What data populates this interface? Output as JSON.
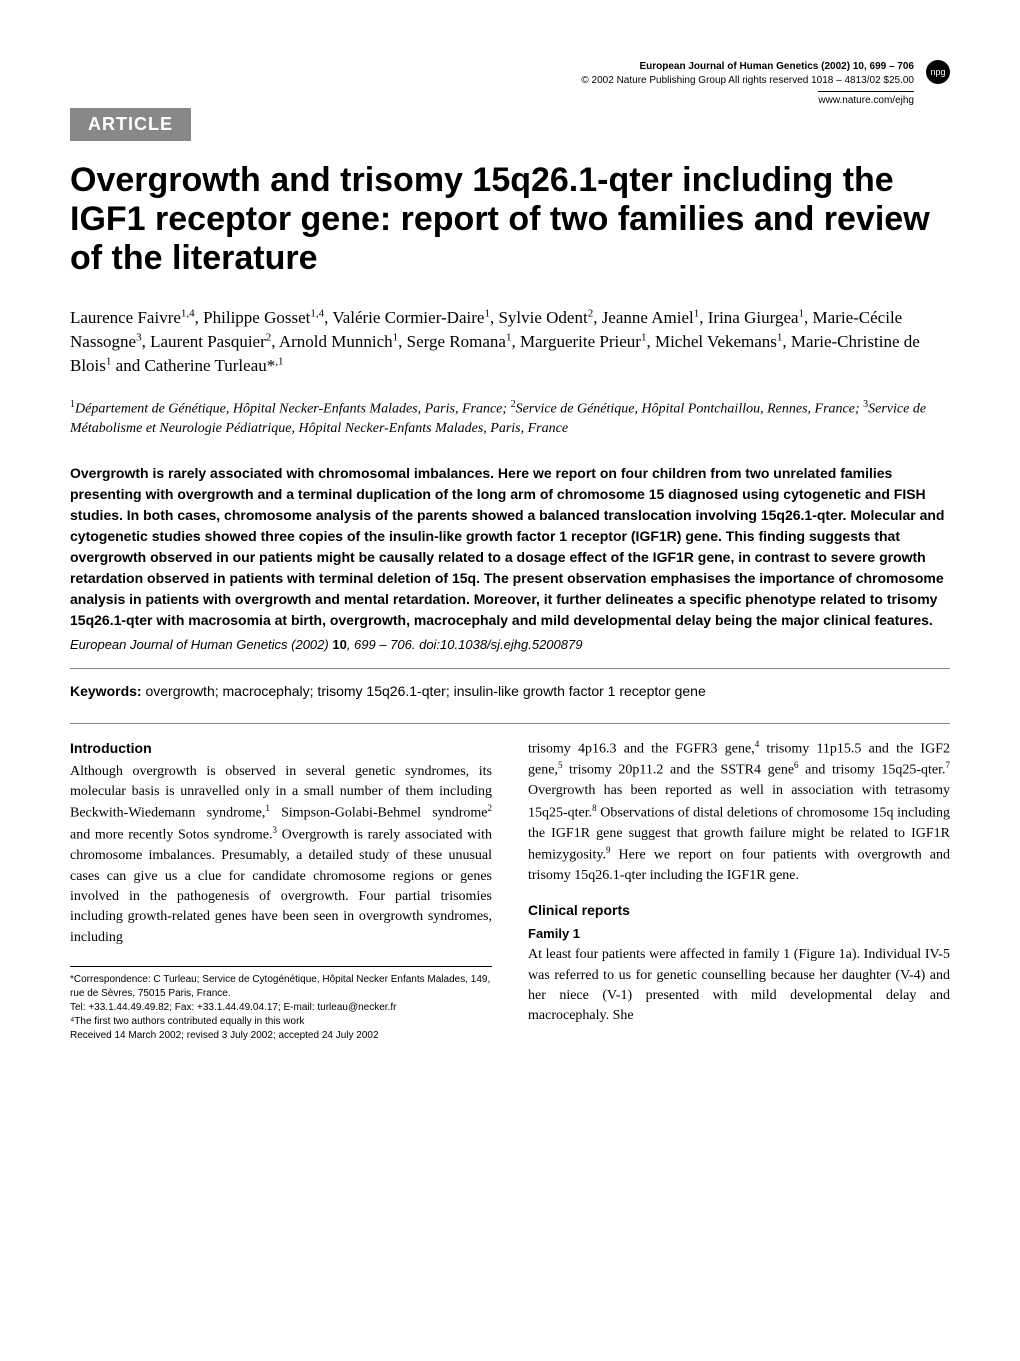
{
  "header": {
    "journal_line": "European Journal of Human Genetics (2002) 10, 699 – 706",
    "copyright_line": "© 2002 Nature Publishing Group   All rights reserved 1018 – 4813/02 $25.00",
    "url": "www.nature.com/ejhg",
    "badge": "npg"
  },
  "article_tag": "ARTICLE",
  "title": "Overgrowth and trisomy 15q26.1-qter including the IGF1 receptor gene: report of two families and review of the literature",
  "authors_html": "Laurence Faivre<sup>1,4</sup>, Philippe Gosset<sup>1,4</sup>, Valérie Cormier-Daire<sup>1</sup>, Sylvie Odent<sup>2</sup>, Jeanne Amiel<sup>1</sup>, Irina Giurgea<sup>1</sup>, Marie-Cécile Nassogne<sup>3</sup>, Laurent Pasquier<sup>2</sup>, Arnold Munnich<sup>1</sup>, Serge Romana<sup>1</sup>, Marguerite Prieur<sup>1</sup>, Michel Vekemans<sup>1</sup>, Marie-Christine de Blois<sup>1</sup> and Catherine Turleau*<sup>,1</sup>",
  "affiliations_html": "<sup>1</sup>Département de Génétique, Hôpital Necker-Enfants Malades, Paris, France; <sup>2</sup>Service de Génétique, Hôpital Pontchaillou, Rennes, France; <sup>3</sup>Service de Métabolisme et Neurologie Pédiatrique, Hôpital Necker-Enfants Malades, Paris, France",
  "abstract": "Overgrowth is rarely associated with chromosomal imbalances. Here we report on four children from two unrelated families presenting with overgrowth and a terminal duplication of the long arm of chromosome 15 diagnosed using cytogenetic and FISH studies. In both cases, chromosome analysis of the parents showed a balanced translocation involving 15q26.1-qter. Molecular and cytogenetic studies showed three copies of the insulin-like growth factor 1 receptor (IGF1R) gene. This finding suggests that overgrowth observed in our patients might be causally related to a dosage effect of the IGF1R gene, in contrast to severe growth retardation observed in patients with terminal deletion of 15q. The present observation emphasises the importance of chromosome analysis in patients with overgrowth and mental retardation. Moreover, it further delineates a specific phenotype related to trisomy 15q26.1-qter with macrosomia at birth, overgrowth, macrocephaly and mild developmental delay being the major clinical features.",
  "citation": {
    "journal": "European Journal of Human Genetics",
    "year_vol_pages": "(2002) 10, 699 – 706.",
    "doi": "doi:10.1038/sj.ejhg.5200879"
  },
  "keywords": {
    "label": "Keywords:",
    "text": "overgrowth; macrocephaly; trisomy 15q26.1-qter; insulin-like growth factor 1 receptor gene"
  },
  "left_column": {
    "heading": "Introduction",
    "body_html": "Although overgrowth is observed in several genetic syndromes, its molecular basis is unravelled only in a small number of them including Beckwith-Wiedemann syndrome,<sup>1</sup> Simpson-Golabi-Behmel syndrome<sup>2</sup> and more recently Sotos syndrome.<sup>3</sup> Overgrowth is rarely associated with chromosome imbalances. Presumably, a detailed study of these unusual cases can give us a clue for candidate chromosome regions or genes involved in the pathogenesis of overgrowth. Four partial trisomies including growth-related genes have been seen in overgrowth syndromes, including"
  },
  "right_column": {
    "top_body_html": "trisomy 4p16.3 and the FGFR3 gene,<sup>4</sup> trisomy 11p15.5 and the IGF2 gene,<sup>5</sup> trisomy 20p11.2 and the SSTR4 gene<sup>6</sup> and trisomy 15q25-qter.<sup>7</sup> Overgrowth has been reported as well in association with tetrasomy 15q25-qter.<sup>8</sup> Observations of distal deletions of chromosome 15q including the IGF1R gene suggest that growth failure might be related to IGF1R hemizygosity.<sup>9</sup> Here we report on four patients with overgrowth and trisomy 15q26.1-qter including the IGF1R gene.",
    "heading": "Clinical reports",
    "sub_heading": "Family 1",
    "body_html": "At least four patients were affected in family 1 (Figure 1a). Individual IV-5 was referred to us for genetic counselling because her daughter (V-4) and her niece (V-1) presented with mild developmental delay and macrocephaly. She"
  },
  "footnotes": {
    "correspondence": "*Correspondence: C Turleau; Service de Cytogénétique, Hôpital Necker Enfants Malades, 149, rue de Sèvres, 75015 Paris, France.",
    "tel_fax_email": "Tel: +33.1.44.49.49.82; Fax: +33.1.44.49.04.17; E-mail: turleau@necker.fr",
    "equal_contrib": "⁴The first two authors contributed equally in this work",
    "received": "Received 14 March 2002; revised 3 July 2002; accepted 24 July 2002"
  },
  "colors": {
    "article_tag_bg": "#888888",
    "article_tag_fg": "#ffffff",
    "body_text": "#000000",
    "divider": "#888888",
    "background": "#ffffff"
  }
}
